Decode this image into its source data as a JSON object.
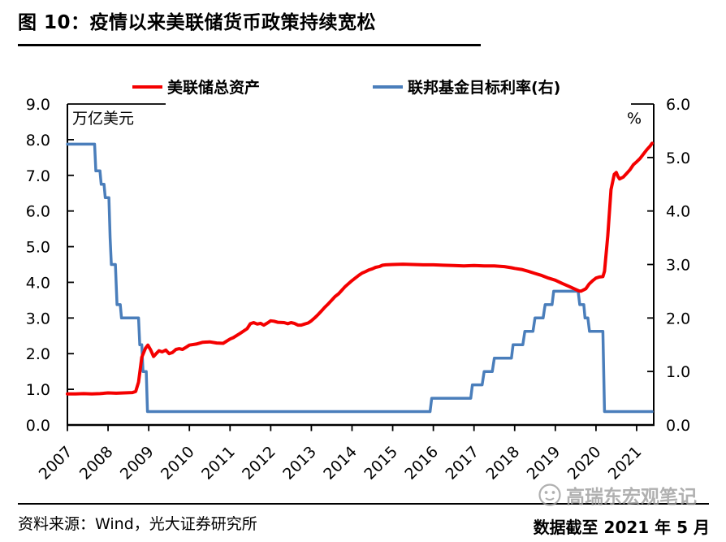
{
  "page": {
    "title": "图 10：疫情以来美联储货币政策持续宽松"
  },
  "chart_data": {
    "type": "line",
    "title": "图 10：疫情以来美联储货币政策持续宽松",
    "grid": false,
    "legend_position": "top",
    "left_axis": {
      "label": "万亿美元",
      "range": [
        0,
        9
      ],
      "ticks": [
        "0.0",
        "1.0",
        "2.0",
        "3.0",
        "4.0",
        "5.0",
        "6.0",
        "7.0",
        "8.0",
        "9.0"
      ]
    },
    "right_axis": {
      "label": "%",
      "range": [
        0,
        6
      ],
      "ticks": [
        "0.0",
        "1.0",
        "2.0",
        "3.0",
        "4.0",
        "5.0",
        "6.0"
      ]
    },
    "x_axis": {
      "range_years": [
        2007,
        2021.42
      ],
      "tick_labels": [
        "2007",
        "2008",
        "2009",
        "2010",
        "2011",
        "2012",
        "2013",
        "2014",
        "2015",
        "2016",
        "2017",
        "2018",
        "2019",
        "2020",
        "2021"
      ]
    },
    "legend": [
      {
        "label": "美联储总资产",
        "color": "#F40000"
      },
      {
        "label": "联邦基金目标利率(右)",
        "color": "#4A7EBB"
      }
    ],
    "series": [
      {
        "name": "联邦基金目标利率(右)",
        "axis": "right",
        "color": "#4A7EBB",
        "width": 3.5,
        "points": [
          [
            2007.0,
            5.25
          ],
          [
            2007.67,
            5.25
          ],
          [
            2007.7,
            4.75
          ],
          [
            2007.8,
            4.75
          ],
          [
            2007.83,
            4.5
          ],
          [
            2007.9,
            4.5
          ],
          [
            2007.93,
            4.25
          ],
          [
            2008.02,
            4.25
          ],
          [
            2008.05,
            3.5
          ],
          [
            2008.08,
            3.0
          ],
          [
            2008.18,
            3.0
          ],
          [
            2008.22,
            2.25
          ],
          [
            2008.3,
            2.25
          ],
          [
            2008.33,
            2.0
          ],
          [
            2008.75,
            2.0
          ],
          [
            2008.78,
            1.5
          ],
          [
            2008.83,
            1.5
          ],
          [
            2008.86,
            1.0
          ],
          [
            2008.94,
            1.0
          ],
          [
            2008.97,
            0.25
          ],
          [
            2015.92,
            0.25
          ],
          [
            2015.96,
            0.5
          ],
          [
            2016.92,
            0.5
          ],
          [
            2016.96,
            0.75
          ],
          [
            2017.2,
            0.75
          ],
          [
            2017.25,
            1.0
          ],
          [
            2017.45,
            1.0
          ],
          [
            2017.5,
            1.25
          ],
          [
            2017.92,
            1.25
          ],
          [
            2017.96,
            1.5
          ],
          [
            2018.2,
            1.5
          ],
          [
            2018.25,
            1.75
          ],
          [
            2018.45,
            1.75
          ],
          [
            2018.5,
            2.0
          ],
          [
            2018.7,
            2.0
          ],
          [
            2018.75,
            2.25
          ],
          [
            2018.92,
            2.25
          ],
          [
            2018.96,
            2.5
          ],
          [
            2019.56,
            2.5
          ],
          [
            2019.6,
            2.25
          ],
          [
            2019.7,
            2.25
          ],
          [
            2019.73,
            2.0
          ],
          [
            2019.8,
            2.0
          ],
          [
            2019.84,
            1.75
          ],
          [
            2020.17,
            1.75
          ],
          [
            2020.21,
            0.25
          ],
          [
            2021.38,
            0.25
          ]
        ]
      },
      {
        "name": "美联储总资产",
        "axis": "left",
        "color": "#F40000",
        "width": 4,
        "points": [
          [
            2007.0,
            0.87
          ],
          [
            2007.2,
            0.87
          ],
          [
            2007.4,
            0.88
          ],
          [
            2007.6,
            0.87
          ],
          [
            2007.8,
            0.88
          ],
          [
            2008.0,
            0.9
          ],
          [
            2008.2,
            0.89
          ],
          [
            2008.4,
            0.9
          ],
          [
            2008.6,
            0.91
          ],
          [
            2008.68,
            0.94
          ],
          [
            2008.75,
            1.2
          ],
          [
            2008.83,
            1.9
          ],
          [
            2008.92,
            2.15
          ],
          [
            2008.98,
            2.24
          ],
          [
            2009.05,
            2.1
          ],
          [
            2009.12,
            1.92
          ],
          [
            2009.2,
            2.02
          ],
          [
            2009.25,
            2.08
          ],
          [
            2009.33,
            2.05
          ],
          [
            2009.42,
            2.1
          ],
          [
            2009.5,
            2.0
          ],
          [
            2009.58,
            2.03
          ],
          [
            2009.67,
            2.12
          ],
          [
            2009.75,
            2.14
          ],
          [
            2009.83,
            2.12
          ],
          [
            2009.92,
            2.18
          ],
          [
            2010.0,
            2.24
          ],
          [
            2010.17,
            2.27
          ],
          [
            2010.33,
            2.32
          ],
          [
            2010.5,
            2.33
          ],
          [
            2010.67,
            2.3
          ],
          [
            2010.83,
            2.29
          ],
          [
            2011.0,
            2.41
          ],
          [
            2011.08,
            2.45
          ],
          [
            2011.25,
            2.57
          ],
          [
            2011.42,
            2.7
          ],
          [
            2011.5,
            2.84
          ],
          [
            2011.58,
            2.87
          ],
          [
            2011.67,
            2.83
          ],
          [
            2011.75,
            2.85
          ],
          [
            2011.83,
            2.8
          ],
          [
            2011.92,
            2.86
          ],
          [
            2012.0,
            2.92
          ],
          [
            2012.08,
            2.91
          ],
          [
            2012.17,
            2.88
          ],
          [
            2012.33,
            2.87
          ],
          [
            2012.42,
            2.84
          ],
          [
            2012.5,
            2.87
          ],
          [
            2012.58,
            2.85
          ],
          [
            2012.67,
            2.8
          ],
          [
            2012.75,
            2.8
          ],
          [
            2012.83,
            2.83
          ],
          [
            2012.92,
            2.86
          ],
          [
            2013.0,
            2.92
          ],
          [
            2013.08,
            3.0
          ],
          [
            2013.17,
            3.1
          ],
          [
            2013.25,
            3.2
          ],
          [
            2013.33,
            3.3
          ],
          [
            2013.42,
            3.4
          ],
          [
            2013.5,
            3.5
          ],
          [
            2013.58,
            3.6
          ],
          [
            2013.67,
            3.68
          ],
          [
            2013.75,
            3.78
          ],
          [
            2013.83,
            3.88
          ],
          [
            2013.92,
            3.97
          ],
          [
            2014.0,
            4.05
          ],
          [
            2014.08,
            4.12
          ],
          [
            2014.17,
            4.2
          ],
          [
            2014.25,
            4.26
          ],
          [
            2014.33,
            4.3
          ],
          [
            2014.42,
            4.35
          ],
          [
            2014.5,
            4.38
          ],
          [
            2014.58,
            4.42
          ],
          [
            2014.67,
            4.44
          ],
          [
            2014.75,
            4.48
          ],
          [
            2014.83,
            4.49
          ],
          [
            2015.0,
            4.5
          ],
          [
            2015.25,
            4.51
          ],
          [
            2015.5,
            4.5
          ],
          [
            2015.75,
            4.49
          ],
          [
            2016.0,
            4.49
          ],
          [
            2016.25,
            4.48
          ],
          [
            2016.5,
            4.47
          ],
          [
            2016.75,
            4.46
          ],
          [
            2017.0,
            4.47
          ],
          [
            2017.25,
            4.46
          ],
          [
            2017.5,
            4.46
          ],
          [
            2017.75,
            4.44
          ],
          [
            2017.92,
            4.41
          ],
          [
            2018.0,
            4.39
          ],
          [
            2018.17,
            4.36
          ],
          [
            2018.33,
            4.31
          ],
          [
            2018.5,
            4.25
          ],
          [
            2018.67,
            4.19
          ],
          [
            2018.83,
            4.12
          ],
          [
            2019.0,
            4.06
          ],
          [
            2019.17,
            3.97
          ],
          [
            2019.33,
            3.89
          ],
          [
            2019.5,
            3.8
          ],
          [
            2019.58,
            3.76
          ],
          [
            2019.63,
            3.75
          ],
          [
            2019.75,
            3.82
          ],
          [
            2019.83,
            3.95
          ],
          [
            2019.92,
            4.05
          ],
          [
            2020.0,
            4.12
          ],
          [
            2020.08,
            4.15
          ],
          [
            2020.17,
            4.16
          ],
          [
            2020.21,
            4.31
          ],
          [
            2020.29,
            5.3
          ],
          [
            2020.37,
            6.6
          ],
          [
            2020.45,
            7.03
          ],
          [
            2020.5,
            7.08
          ],
          [
            2020.54,
            6.97
          ],
          [
            2020.58,
            6.9
          ],
          [
            2020.67,
            6.95
          ],
          [
            2020.75,
            7.05
          ],
          [
            2020.83,
            7.15
          ],
          [
            2020.92,
            7.3
          ],
          [
            2021.0,
            7.38
          ],
          [
            2021.08,
            7.47
          ],
          [
            2021.17,
            7.6
          ],
          [
            2021.25,
            7.72
          ],
          [
            2021.33,
            7.82
          ],
          [
            2021.38,
            7.9
          ]
        ]
      }
    ]
  },
  "footer": {
    "source": "资料来源：Wind，光大证券研究所",
    "cutoff": "数据截至 2021 年 5 月"
  },
  "watermark": {
    "text": "高瑞东宏观笔记"
  }
}
